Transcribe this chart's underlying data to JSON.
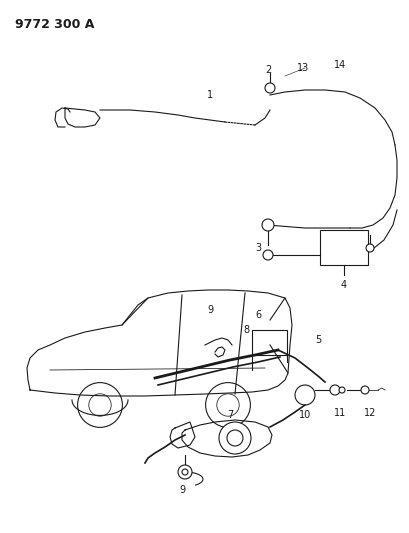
{
  "title": "9772 300 A",
  "bg_color": "#ffffff",
  "line_color": "#1a1a1a",
  "title_fontsize": 9,
  "label_fontsize": 7,
  "figsize": [
    4.1,
    5.33
  ],
  "dpi": 100
}
